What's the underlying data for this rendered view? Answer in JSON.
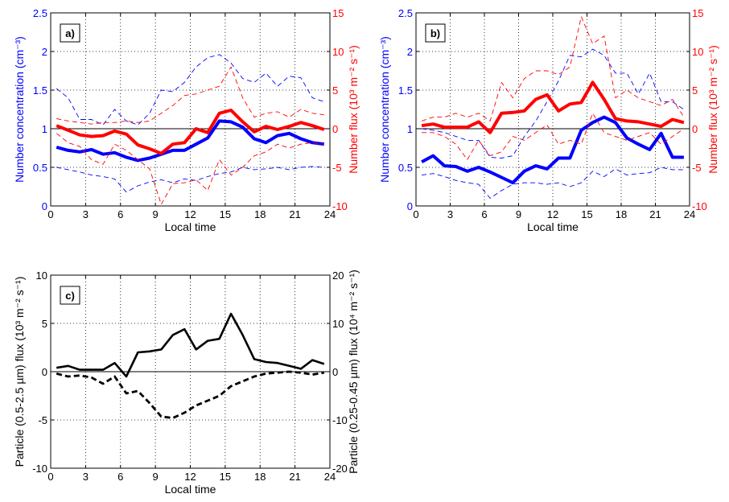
{
  "chart_data": [
    {
      "type": "line",
      "panel_label": "a)",
      "xlabel": "Local time",
      "ylabel_left": "Number concentration (cm⁻³)",
      "ylabel_right": "Number flux (10³ m⁻² s⁻¹)",
      "xlim": [
        0,
        24
      ],
      "ylim_left": [
        0,
        2.5
      ],
      "ylim_right": [
        -10,
        15
      ],
      "xticks": [
        "0",
        "3",
        "6",
        "9",
        "12",
        "15",
        "18",
        "21",
        "24"
      ],
      "yticks_left": [
        "0",
        "0.5",
        "1",
        "1.5",
        "2",
        "2.5"
      ],
      "yticks_right": [
        "-10",
        "-5",
        "0",
        "5",
        "10",
        "15"
      ],
      "grid": true,
      "colors": {
        "left": "#0000ff",
        "right": "#ff0000"
      },
      "x": [
        0.5,
        1.5,
        2.5,
        3.5,
        4.5,
        5.5,
        6.5,
        7.5,
        8.5,
        9.5,
        10.5,
        11.5,
        12.5,
        13.5,
        14.5,
        15.5,
        16.5,
        17.5,
        18.5,
        19.5,
        20.5,
        21.5,
        22.5,
        23.5
      ],
      "series": [
        {
          "axis": "left",
          "style": "thick",
          "values": [
            0.76,
            0.72,
            0.7,
            0.73,
            0.67,
            0.69,
            0.63,
            0.59,
            0.62,
            0.67,
            0.72,
            0.72,
            0.8,
            0.88,
            1.1,
            1.09,
            1.02,
            0.87,
            0.82,
            0.91,
            0.94,
            0.87,
            0.82,
            0.8
          ]
        },
        {
          "axis": "left",
          "style": "dashed",
          "values": [
            1.52,
            1.4,
            1.12,
            1.12,
            1.05,
            1.25,
            1.1,
            1.05,
            1.2,
            1.5,
            1.48,
            1.6,
            1.8,
            1.92,
            1.96,
            1.85,
            1.65,
            1.6,
            1.72,
            1.55,
            1.68,
            1.66,
            1.4,
            1.35
          ]
        },
        {
          "axis": "left",
          "style": "dashed",
          "values": [
            0.5,
            0.47,
            0.44,
            0.4,
            0.38,
            0.35,
            0.18,
            0.26,
            0.31,
            0.34,
            0.3,
            0.35,
            0.33,
            0.38,
            0.42,
            0.44,
            0.5,
            0.47,
            0.48,
            0.5,
            0.47,
            0.5,
            0.51,
            0.5
          ]
        },
        {
          "axis": "right",
          "style": "thick",
          "values": [
            0.4,
            -0.2,
            -0.8,
            -1.0,
            -0.9,
            -0.3,
            -0.7,
            -2.1,
            -2.6,
            -3.2,
            -2.0,
            -1.8,
            0.0,
            -0.5,
            2.0,
            2.4,
            0.9,
            -0.4,
            0.3,
            -0.1,
            0.3,
            0.8,
            0.4,
            -0.1
          ]
        },
        {
          "axis": "right",
          "style": "dashed",
          "values": [
            1.3,
            1.0,
            0.8,
            0.6,
            0.8,
            0.8,
            1.0,
            0.8,
            1.0,
            2.0,
            3.0,
            4.3,
            4.5,
            5.0,
            5.5,
            8.0,
            4.0,
            1.5,
            2.0,
            2.2,
            1.5,
            2.5,
            2.0,
            1.8
          ]
        },
        {
          "axis": "right",
          "style": "dashed",
          "values": [
            -0.6,
            -1.8,
            -2.3,
            -4.0,
            -4.6,
            -2.0,
            -2.8,
            -4.0,
            -5.2,
            -9.8,
            -7.1,
            -7.0,
            -6.6,
            -8.0,
            -4.0,
            -6.0,
            -5.0,
            -3.5,
            -3.0,
            -2.0,
            -2.5,
            -2.0,
            -1.8,
            -2.0
          ]
        }
      ]
    },
    {
      "type": "line",
      "panel_label": "b)",
      "xlabel": "Local time",
      "ylabel_left": "Number concentration (cm⁻³)",
      "ylabel_right": "Number flux (10³ m⁻² s⁻¹)",
      "xlim": [
        0,
        24
      ],
      "ylim_left": [
        0,
        2.5
      ],
      "ylim_right": [
        -10,
        15
      ],
      "xticks": [
        "0",
        "3",
        "6",
        "9",
        "12",
        "15",
        "18",
        "21",
        "24"
      ],
      "yticks_left": [
        "0",
        "0.5",
        "1",
        "1.5",
        "2",
        "2.5"
      ],
      "yticks_right": [
        "-10",
        "-5",
        "0",
        "5",
        "10",
        "15"
      ],
      "grid": true,
      "colors": {
        "left": "#0000ff",
        "right": "#ff0000"
      },
      "x": [
        0.5,
        1.5,
        2.5,
        3.5,
        4.5,
        5.5,
        6.5,
        7.5,
        8.5,
        9.5,
        10.5,
        11.5,
        12.5,
        13.5,
        14.5,
        15.5,
        16.5,
        17.5,
        18.5,
        19.5,
        20.5,
        21.5,
        22.5,
        23.5
      ],
      "series": [
        {
          "axis": "left",
          "style": "thick",
          "values": [
            0.57,
            0.65,
            0.52,
            0.51,
            0.45,
            0.5,
            0.44,
            0.37,
            0.3,
            0.45,
            0.52,
            0.48,
            0.62,
            0.62,
            0.98,
            1.08,
            1.15,
            1.08,
            0.88,
            0.8,
            0.73,
            0.94,
            0.63,
            0.63
          ]
        },
        {
          "axis": "left",
          "style": "dashed",
          "values": [
            1.0,
            0.98,
            0.95,
            0.9,
            0.85,
            0.85,
            0.63,
            0.62,
            0.65,
            0.9,
            1.1,
            1.35,
            1.62,
            1.95,
            1.93,
            2.03,
            1.95,
            1.72,
            1.72,
            1.45,
            1.72,
            1.35,
            1.35,
            1.25
          ]
        },
        {
          "axis": "left",
          "style": "dashed",
          "values": [
            0.4,
            0.42,
            0.38,
            0.33,
            0.3,
            0.28,
            0.1,
            0.2,
            0.28,
            0.3,
            0.3,
            0.28,
            0.3,
            0.25,
            0.3,
            0.45,
            0.38,
            0.48,
            0.4,
            0.42,
            0.43,
            0.5,
            0.47,
            0.47
          ]
        },
        {
          "axis": "right",
          "style": "thick",
          "values": [
            0.4,
            0.6,
            0.2,
            0.2,
            0.2,
            0.9,
            -0.5,
            2.0,
            2.1,
            2.3,
            3.8,
            4.4,
            2.3,
            3.2,
            3.4,
            6.0,
            3.8,
            1.3,
            1.0,
            0.9,
            0.6,
            0.3,
            1.2,
            0.8
          ]
        },
        {
          "axis": "right",
          "style": "dashed",
          "values": [
            1.0,
            1.5,
            1.5,
            2.0,
            1.5,
            2.0,
            1.0,
            6.0,
            4.0,
            6.5,
            7.5,
            7.5,
            7.0,
            8.0,
            14.5,
            11.0,
            12.0,
            4.0,
            5.0,
            4.0,
            3.5,
            3.0,
            3.8,
            1.5
          ]
        },
        {
          "axis": "right",
          "style": "dashed",
          "values": [
            -0.5,
            -0.5,
            -1.0,
            -2.0,
            -4.0,
            -1.5,
            -3.5,
            -3.0,
            -1.0,
            -1.5,
            -0.5,
            0.5,
            -2.0,
            -1.5,
            -2.0,
            2.0,
            -0.5,
            -1.0,
            -1.5,
            -1.0,
            -0.5,
            -2.0,
            -1.0,
            0.0
          ]
        }
      ]
    },
    {
      "type": "line",
      "panel_label": "c)",
      "xlabel": "Local time",
      "ylabel_left": "Particle (0.5-2.5 µm) flux  (10³ m⁻² s⁻¹)",
      "ylabel_right": "Particle (0.25-0.45 µm) flux  (10⁴ m⁻² s⁻¹)",
      "xlim": [
        0,
        24
      ],
      "ylim_left": [
        -10,
        10
      ],
      "ylim_right": [
        -20,
        20
      ],
      "xticks": [
        "0",
        "3",
        "6",
        "9",
        "12",
        "15",
        "18",
        "21",
        "24"
      ],
      "yticks_left": [
        "-10",
        "-5",
        "0",
        "5",
        "10"
      ],
      "yticks_right": [
        "-20",
        "-10",
        "0",
        "10",
        "20"
      ],
      "grid": true,
      "colors": {
        "left": "#000000",
        "right": "#000000"
      },
      "x": [
        0.5,
        1.5,
        2.5,
        3.5,
        4.5,
        5.5,
        6.5,
        7.5,
        8.5,
        9.5,
        10.5,
        11.5,
        12.5,
        13.5,
        14.5,
        15.5,
        16.5,
        17.5,
        18.5,
        19.5,
        20.5,
        21.5,
        22.5,
        23.5
      ],
      "series": [
        {
          "axis": "left",
          "style": "solid",
          "values": [
            0.4,
            0.6,
            0.2,
            0.2,
            0.2,
            0.9,
            -0.5,
            2.0,
            2.1,
            2.3,
            3.8,
            4.4,
            2.3,
            3.2,
            3.4,
            6.0,
            3.8,
            1.3,
            1.0,
            0.9,
            0.6,
            0.3,
            1.2,
            0.8
          ]
        },
        {
          "axis": "right",
          "style": "dashed",
          "values": [
            -0.4,
            -1.0,
            -0.8,
            -1.2,
            -2.5,
            -1.0,
            -4.5,
            -4.0,
            -6.5,
            -9.3,
            -9.6,
            -8.5,
            -7.0,
            -6.0,
            -5.0,
            -3.0,
            -2.0,
            -1.0,
            -0.4,
            -0.2,
            0.0,
            -0.2,
            -0.6,
            -0.2
          ]
        }
      ]
    }
  ]
}
